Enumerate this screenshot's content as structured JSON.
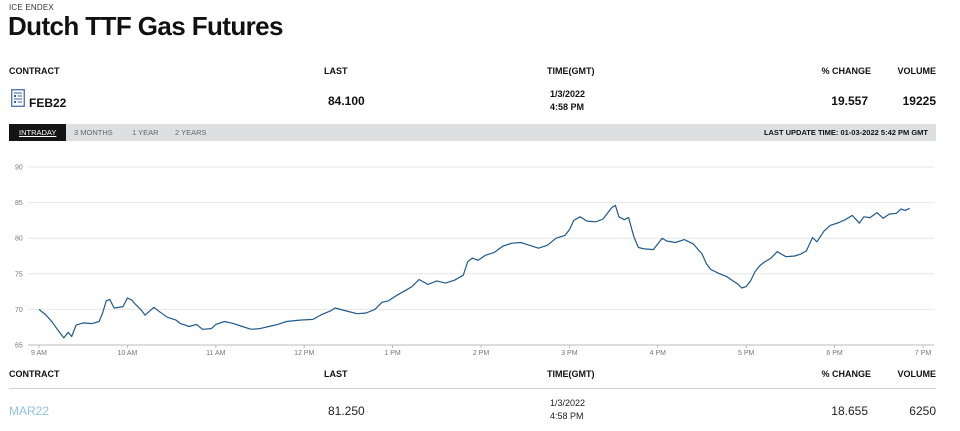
{
  "header": {
    "eyebrow": "ICE ENDEX",
    "title": "Dutch TTF Gas Futures"
  },
  "columns": {
    "contract": "CONTRACT",
    "last": "LAST",
    "time": "TIME(GMT)",
    "change": "% CHANGE",
    "volume": "VOLUME"
  },
  "rows": [
    {
      "contract": "FEB22",
      "last": "84.100",
      "date": "1/3/2022",
      "time": "4:58 PM",
      "change": "19.557",
      "volume": "19225"
    },
    {
      "contract": "MAR22",
      "last": "81.250",
      "date": "1/3/2022",
      "time": "4:58 PM",
      "change": "18.655",
      "volume": "6250"
    }
  ],
  "tabs": [
    "INTRADAY",
    "3 MONTHS",
    "1 YEAR",
    "2 YEARS"
  ],
  "active_tab": "INTRADAY",
  "last_update": "LAST UPDATE TIME: 01-03-2022 5:42 PM GMT",
  "colors": {
    "line": "#1f5a8c",
    "tabbar": "#dddfe1",
    "active_tab": "#141414",
    "link": "#8fc4e3",
    "icon": "#3a62a8"
  },
  "icons": {
    "contract": "document-chart-icon"
  },
  "chart_data": {
    "type": "line",
    "x_tick_labels": [
      "9 AM",
      "10 AM",
      "11 AM",
      "12 PM",
      "1 PM",
      "2 PM",
      "3 PM",
      "4 PM",
      "5 PM",
      "6 PM",
      "7 PM"
    ],
    "y_ticks": [
      65,
      70,
      75,
      80,
      85,
      90
    ],
    "ylim": [
      65,
      90
    ],
    "xlim": [
      9,
      19
    ],
    "grid": "horizontal",
    "series": [
      {
        "points": [
          [
            9.0,
            70.0
          ],
          [
            9.08,
            69.2
          ],
          [
            9.15,
            68.2
          ],
          [
            9.22,
            67.0
          ],
          [
            9.28,
            66.0
          ],
          [
            9.33,
            66.8
          ],
          [
            9.37,
            66.2
          ],
          [
            9.42,
            67.8
          ],
          [
            9.5,
            68.1
          ],
          [
            9.6,
            68.0
          ],
          [
            9.68,
            68.3
          ],
          [
            9.72,
            69.5
          ],
          [
            9.76,
            71.2
          ],
          [
            9.8,
            71.4
          ],
          [
            9.85,
            70.2
          ],
          [
            9.95,
            70.4
          ],
          [
            10.0,
            71.6
          ],
          [
            10.05,
            71.3
          ],
          [
            10.1,
            70.6
          ],
          [
            10.15,
            70.0
          ],
          [
            10.2,
            69.2
          ],
          [
            10.3,
            70.3
          ],
          [
            10.35,
            69.8
          ],
          [
            10.45,
            68.9
          ],
          [
            10.55,
            68.5
          ],
          [
            10.6,
            68.0
          ],
          [
            10.7,
            67.6
          ],
          [
            10.78,
            67.9
          ],
          [
            10.85,
            67.2
          ],
          [
            10.95,
            67.3
          ],
          [
            11.0,
            67.9
          ],
          [
            11.1,
            68.3
          ],
          [
            11.2,
            68.0
          ],
          [
            11.3,
            67.6
          ],
          [
            11.4,
            67.2
          ],
          [
            11.5,
            67.3
          ],
          [
            11.6,
            67.6
          ],
          [
            11.7,
            67.9
          ],
          [
            11.8,
            68.3
          ],
          [
            11.95,
            68.5
          ],
          [
            12.1,
            68.6
          ],
          [
            12.2,
            69.3
          ],
          [
            12.3,
            69.8
          ],
          [
            12.35,
            70.2
          ],
          [
            12.5,
            69.7
          ],
          [
            12.6,
            69.4
          ],
          [
            12.7,
            69.5
          ],
          [
            12.8,
            70.0
          ],
          [
            12.88,
            71.0
          ],
          [
            12.95,
            71.2
          ],
          [
            13.05,
            72.0
          ],
          [
            13.15,
            72.7
          ],
          [
            13.22,
            73.2
          ],
          [
            13.3,
            74.2
          ],
          [
            13.4,
            73.5
          ],
          [
            13.5,
            74.0
          ],
          [
            13.6,
            73.7
          ],
          [
            13.7,
            74.1
          ],
          [
            13.8,
            74.8
          ],
          [
            13.85,
            76.7
          ],
          [
            13.9,
            77.2
          ],
          [
            13.97,
            76.9
          ],
          [
            14.05,
            77.6
          ],
          [
            14.15,
            78.0
          ],
          [
            14.25,
            78.9
          ],
          [
            14.35,
            79.3
          ],
          [
            14.45,
            79.4
          ],
          [
            14.55,
            79.0
          ],
          [
            14.65,
            78.6
          ],
          [
            14.75,
            79.0
          ],
          [
            14.85,
            80.0
          ],
          [
            14.95,
            80.4
          ],
          [
            15.0,
            81.2
          ],
          [
            15.05,
            82.5
          ],
          [
            15.12,
            83.0
          ],
          [
            15.2,
            82.4
          ],
          [
            15.3,
            82.3
          ],
          [
            15.38,
            82.7
          ],
          [
            15.43,
            83.5
          ],
          [
            15.48,
            84.3
          ],
          [
            15.52,
            84.6
          ],
          [
            15.56,
            83.0
          ],
          [
            15.62,
            82.6
          ],
          [
            15.67,
            82.9
          ],
          [
            15.7,
            81.5
          ],
          [
            15.73,
            80.2
          ],
          [
            15.78,
            78.7
          ],
          [
            15.85,
            78.5
          ],
          [
            15.95,
            78.4
          ],
          [
            16.0,
            79.2
          ],
          [
            16.05,
            80.0
          ],
          [
            16.1,
            79.6
          ],
          [
            16.2,
            79.4
          ],
          [
            16.3,
            79.8
          ],
          [
            16.4,
            79.2
          ],
          [
            16.5,
            77.8
          ],
          [
            16.55,
            76.4
          ],
          [
            16.6,
            75.6
          ],
          [
            16.7,
            75.0
          ],
          [
            16.78,
            74.6
          ],
          [
            16.85,
            74.0
          ],
          [
            16.9,
            73.6
          ],
          [
            16.95,
            73.0
          ],
          [
            17.0,
            73.2
          ],
          [
            17.05,
            74.0
          ],
          [
            17.1,
            75.3
          ],
          [
            17.15,
            76.1
          ],
          [
            17.2,
            76.6
          ],
          [
            17.28,
            77.2
          ],
          [
            17.35,
            78.1
          ],
          [
            17.45,
            77.4
          ],
          [
            17.55,
            77.5
          ],
          [
            17.62,
            77.8
          ],
          [
            17.68,
            78.2
          ],
          [
            17.75,
            80.1
          ],
          [
            17.8,
            79.5
          ],
          [
            17.88,
            81.0
          ],
          [
            17.95,
            81.8
          ],
          [
            18.05,
            82.2
          ],
          [
            18.12,
            82.6
          ],
          [
            18.2,
            83.2
          ],
          [
            18.28,
            82.1
          ],
          [
            18.33,
            83.0
          ],
          [
            18.4,
            82.9
          ],
          [
            18.48,
            83.6
          ],
          [
            18.55,
            82.8
          ],
          [
            18.62,
            83.4
          ],
          [
            18.7,
            83.5
          ],
          [
            18.75,
            84.1
          ],
          [
            18.8,
            83.9
          ],
          [
            18.85,
            84.2
          ]
        ]
      }
    ]
  }
}
